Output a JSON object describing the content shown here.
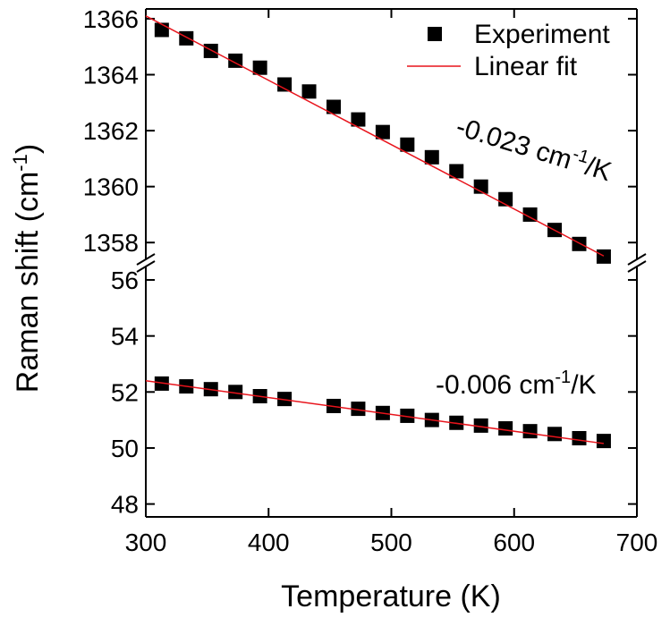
{
  "chart_data": {
    "type": "scatter",
    "x_label": "Temperature (K)",
    "y_label": {
      "text": "Raman shift (cm",
      "sup": "-1",
      "end": ")"
    },
    "xlim": [
      300,
      700
    ],
    "xticks": [
      300,
      400,
      500,
      600,
      700
    ],
    "legend": "upper right",
    "panels": [
      {
        "ylim": [
          1357.4,
          1366.35
        ],
        "yticks": [
          1358,
          1360,
          1362,
          1364,
          1366
        ],
        "series": [
          {
            "name": "Experiment",
            "color": "#000000",
            "marker": "square",
            "x": [
              313,
              333,
              353,
              373,
              393,
              413,
              433,
              453,
              473,
              493,
              513,
              533,
              553,
              573,
              593,
              613,
              633,
              653,
              673
            ],
            "values": [
              1365.6,
              1365.3,
              1364.85,
              1364.5,
              1364.25,
              1363.65,
              1363.4,
              1362.85,
              1362.4,
              1361.95,
              1361.5,
              1361.05,
              1360.55,
              1360.0,
              1359.55,
              1359.0,
              1358.45,
              1357.95,
              1357.5
            ]
          },
          {
            "name": "Linear fit",
            "color": "#e8141c",
            "marker": "line",
            "x": [
              300,
              673
            ],
            "values": [
              1366.1,
              1357.52
            ]
          }
        ],
        "annotation": {
          "text": "-0.023 cm",
          "sup": "-1",
          "end": "/K"
        }
      },
      {
        "ylim": [
          47.54,
          56.48
        ],
        "yticks": [
          48,
          50,
          52,
          54,
          56
        ],
        "series": [
          {
            "color": "#000000",
            "marker": "square",
            "x": [
              313,
              333,
              353,
              373,
              393,
              413,
              453,
              473,
              493,
              513,
              533,
              553,
              573,
              593,
              613,
              633,
              653,
              673
            ],
            "values": [
              52.3,
              52.2,
              52.1,
              52.0,
              51.85,
              51.75,
              51.5,
              51.4,
              51.25,
              51.15,
              51.0,
              50.9,
              50.8,
              50.7,
              50.6,
              50.5,
              50.35,
              50.25
            ]
          },
          {
            "color": "#e8141c",
            "marker": "line",
            "x": [
              300,
              673
            ],
            "values": [
              52.4,
              50.16
            ]
          }
        ],
        "annotation": {
          "text": "-0.006 cm",
          "sup": "-1",
          "end": "/K"
        }
      }
    ]
  }
}
